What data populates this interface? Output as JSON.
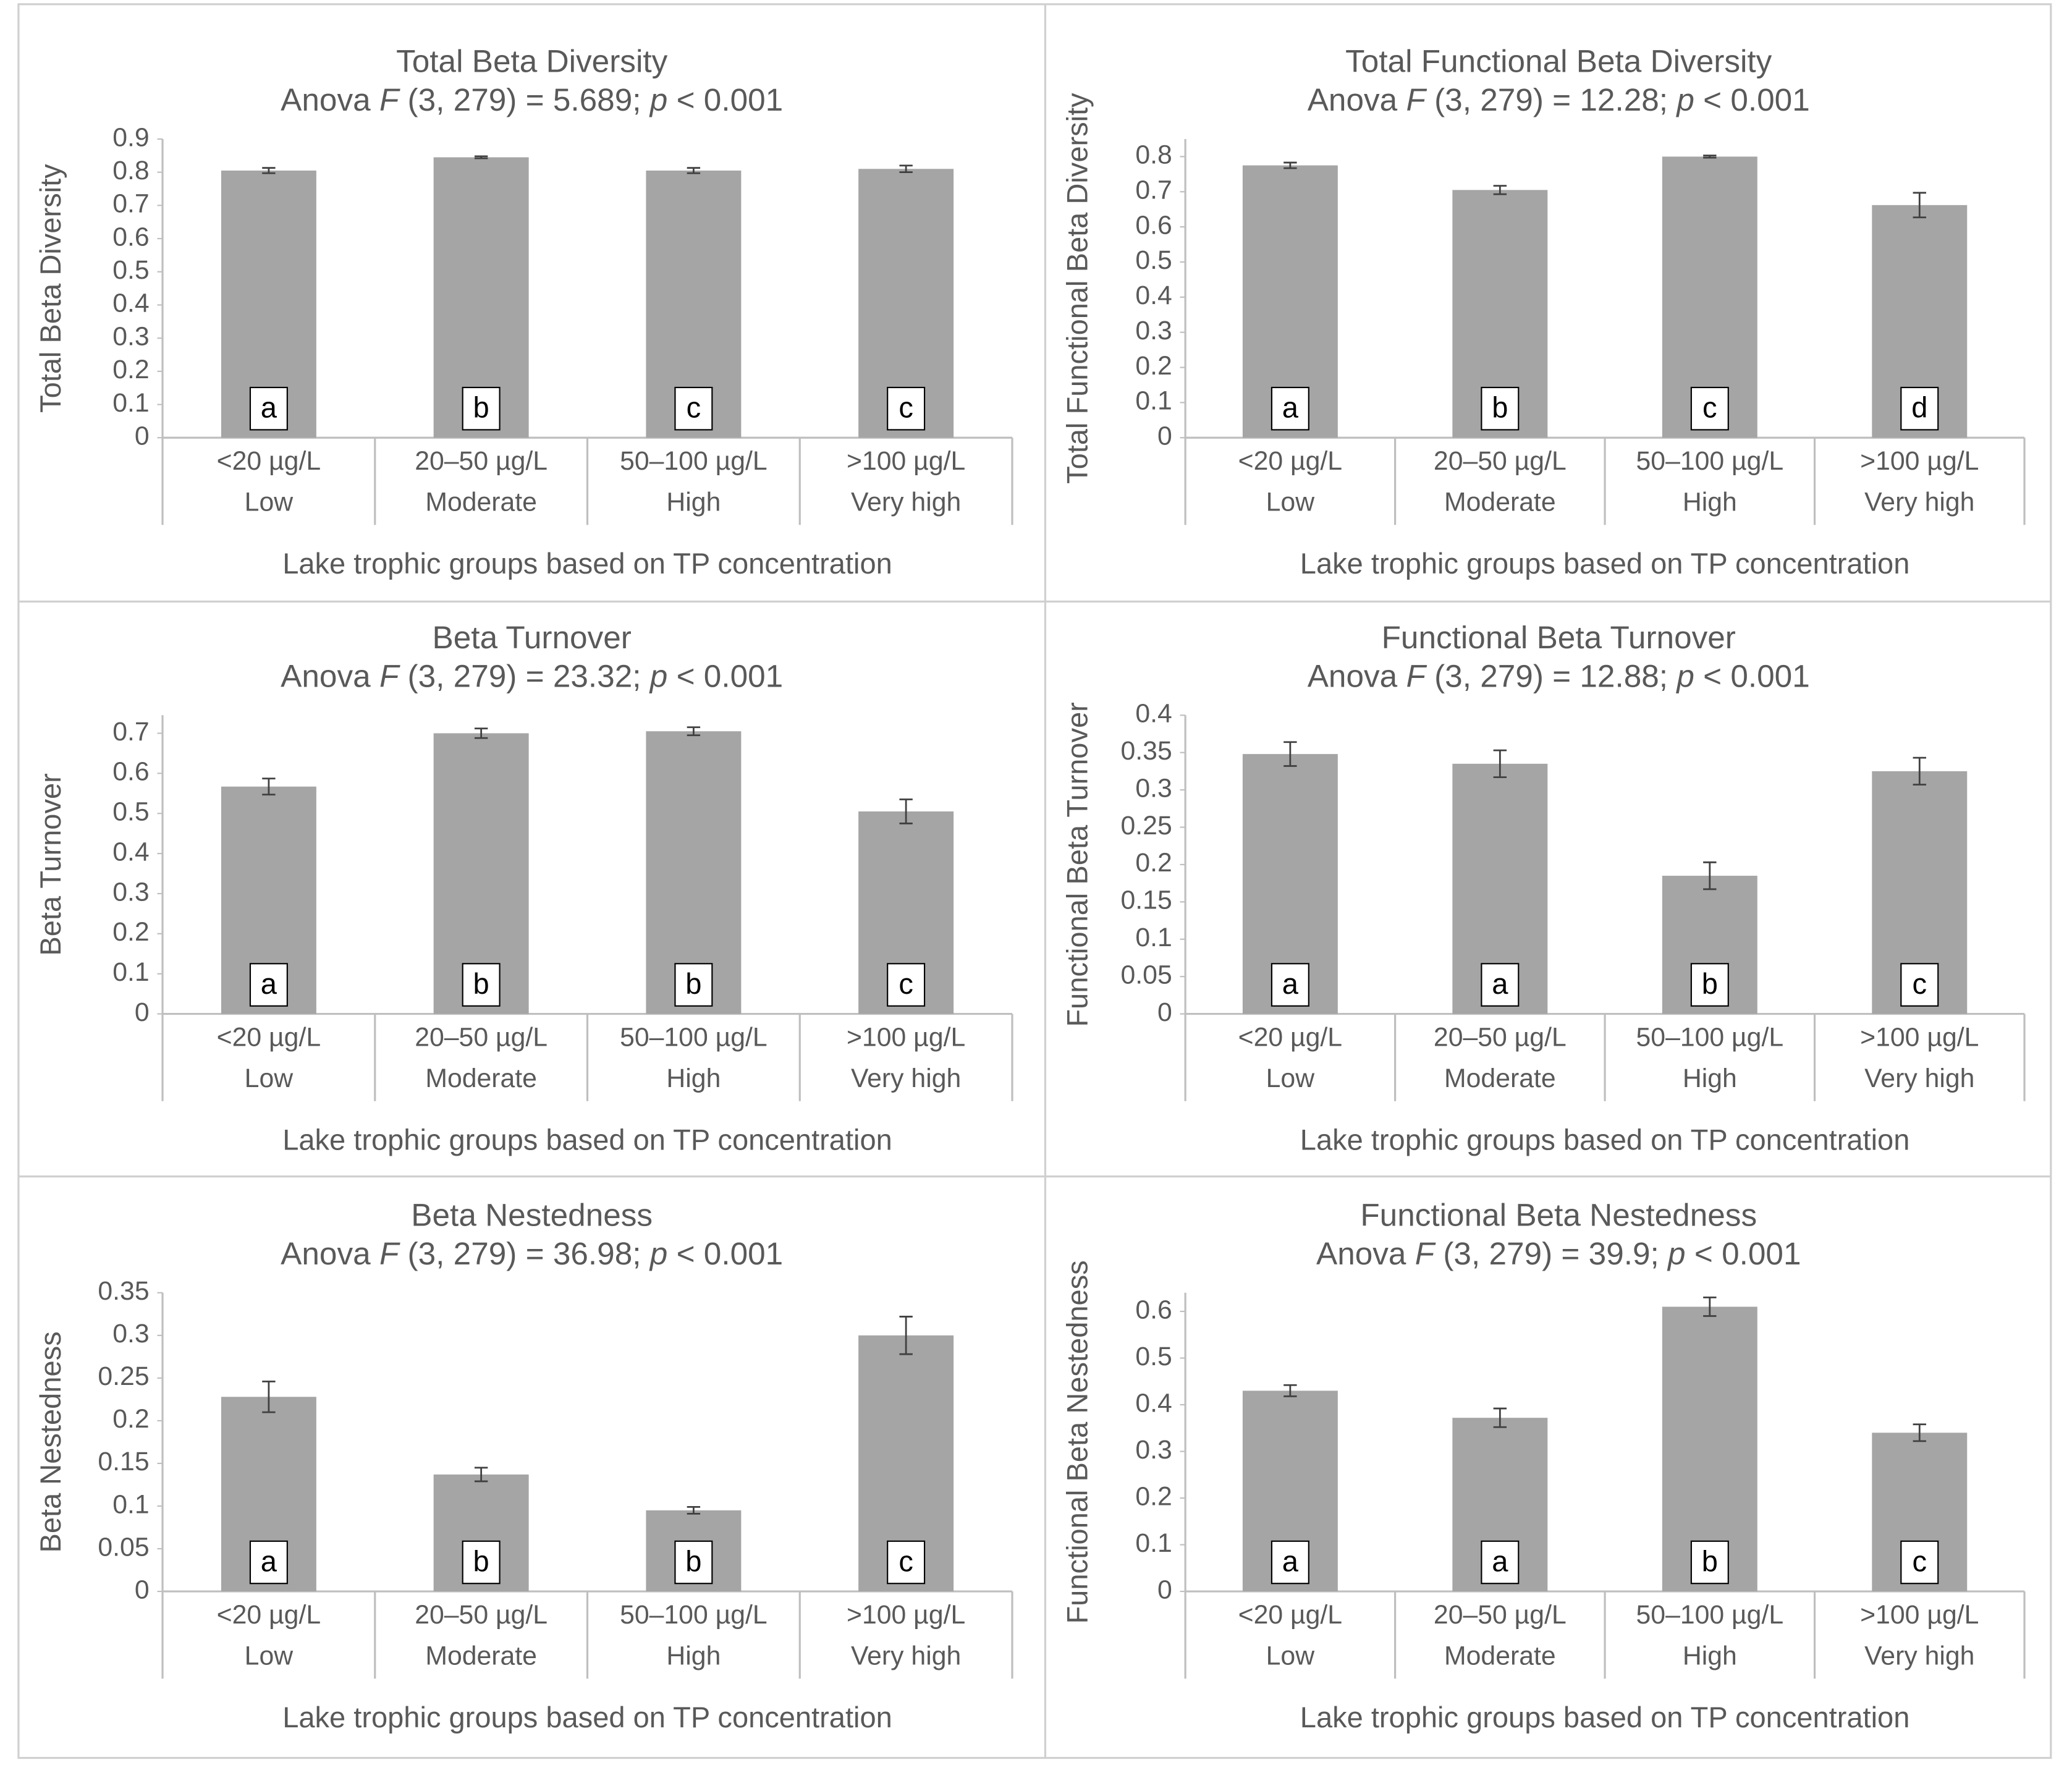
{
  "chart_data": [
    {
      "type": "bar",
      "title": "Total Beta Diversity",
      "subtitle": "Anova F (3, 279)  = 5.689; p < 0.001",
      "ylabel": "Total Beta Diversity",
      "xlabel": "Lake trophic groups based on TP concentration",
      "categories": [
        [
          "<20 µg/L",
          "Low"
        ],
        [
          "20–50  µg/L",
          "Moderate"
        ],
        [
          "50–100  µg/L",
          "High"
        ],
        [
          ">100  µg/L",
          "Very high"
        ]
      ],
      "values": [
        0.805,
        0.845,
        0.805,
        0.81
      ],
      "errors": [
        0.008,
        0.003,
        0.008,
        0.01
      ],
      "group_labels": [
        "a",
        "b",
        "c",
        "c"
      ],
      "color": "#a5a5a5",
      "ylim": [
        0,
        0.9
      ],
      "yticks": [
        0,
        0.1,
        0.2,
        0.3,
        0.4,
        0.5,
        0.6,
        0.7,
        0.8,
        0.9
      ]
    },
    {
      "type": "bar",
      "title": "Total Functional  Beta Diversity",
      "subtitle": "Anova F (3, 279)  = 12.28; p < 0.001",
      "ylabel": "Total Functional Beta Diversity",
      "xlabel": "Lake trophic groups based on TP concentration",
      "categories": [
        [
          "<20 µg/L",
          "Low"
        ],
        [
          "20–50  µg/L",
          "Moderate"
        ],
        [
          "50–100  µg/L",
          "High"
        ],
        [
          ">100  µg/L",
          "Very high"
        ]
      ],
      "values": [
        0.775,
        0.705,
        0.8,
        0.662
      ],
      "errors": [
        0.008,
        0.012,
        0.003,
        0.035
      ],
      "group_labels": [
        "a",
        "b",
        "c",
        "d"
      ],
      "color": "#a5a5a5",
      "ylim": [
        0,
        0.85
      ],
      "yticks": [
        0,
        0.1,
        0.2,
        0.3,
        0.4,
        0.5,
        0.6,
        0.7,
        0.8
      ]
    },
    {
      "type": "bar",
      "title": "Beta Turnover",
      "subtitle": "Anova F (3, 279)  = 23.32; p < 0.001",
      "ylabel": "Beta Turnover",
      "xlabel": "Lake trophic groups based on TP concentration",
      "categories": [
        [
          "<20 µg/L",
          "Low"
        ],
        [
          "20–50  µg/L",
          "Moderate"
        ],
        [
          "50–100  µg/L",
          "High"
        ],
        [
          ">100  µg/L",
          "Very high"
        ]
      ],
      "values": [
        0.567,
        0.7,
        0.705,
        0.505
      ],
      "errors": [
        0.02,
        0.012,
        0.01,
        0.03
      ],
      "group_labels": [
        "a",
        "b",
        "b",
        "c"
      ],
      "color": "#a5a5a5",
      "ylim": [
        0,
        0.745
      ],
      "yticks": [
        0,
        0.1,
        0.2,
        0.3,
        0.4,
        0.5,
        0.6,
        0.7
      ]
    },
    {
      "type": "bar",
      "title": "Functional  Beta Turnover",
      "subtitle": "Anova F (3, 279)  = 12.88; p < 0.001",
      "ylabel": "Functional Beta Turnover",
      "xlabel": "Lake trophic groups based on TP concentration",
      "categories": [
        [
          "<20 µg/L",
          "Low"
        ],
        [
          "20–50  µg/L",
          "Moderate"
        ],
        [
          "50–100  µg/L",
          "High"
        ],
        [
          ">100  µg/L",
          "Very high"
        ]
      ],
      "values": [
        0.348,
        0.335,
        0.185,
        0.325
      ],
      "errors": [
        0.016,
        0.018,
        0.018,
        0.018
      ],
      "group_labels": [
        "a",
        "a",
        "b",
        "c"
      ],
      "color": "#a5a5a5",
      "ylim": [
        0,
        0.4
      ],
      "yticks": [
        0,
        0.05,
        0.1,
        0.15,
        0.2,
        0.25,
        0.3,
        0.35,
        0.4
      ]
    },
    {
      "type": "bar",
      "title": "Beta Nestedness",
      "subtitle": "Anova F (3, 279)  = 36.98; p < 0.001",
      "ylabel": "Beta Nestedness",
      "xlabel": "Lake trophic groups based on TP concentration",
      "categories": [
        [
          "<20 µg/L",
          "Low"
        ],
        [
          "20–50  µg/L",
          "Moderate"
        ],
        [
          "50–100  µg/L",
          "High"
        ],
        [
          ">100  µg/L",
          "Very high"
        ]
      ],
      "values": [
        0.228,
        0.137,
        0.095,
        0.3
      ],
      "errors": [
        0.018,
        0.008,
        0.004,
        0.022
      ],
      "group_labels": [
        "a",
        "b",
        "b",
        "c"
      ],
      "color": "#a5a5a5",
      "ylim": [
        0,
        0.35
      ],
      "yticks": [
        0,
        0.05,
        0.1,
        0.15,
        0.2,
        0.25,
        0.3,
        0.35
      ]
    },
    {
      "type": "bar",
      "title": "Functional  Beta Nestedness",
      "subtitle": "Anova F (3, 279)  = 39.9; p < 0.001",
      "ylabel": "Functional Beta Nestedness",
      "xlabel": "Lake trophic groups based on TP concentration",
      "categories": [
        [
          "<20 µg/L",
          "Low"
        ],
        [
          "20–50  µg/L",
          "Moderate"
        ],
        [
          "50–100  µg/L",
          "High"
        ],
        [
          ">100  µg/L",
          "Very high"
        ]
      ],
      "values": [
        0.43,
        0.372,
        0.61,
        0.34
      ],
      "errors": [
        0.012,
        0.02,
        0.02,
        0.018
      ],
      "group_labels": [
        "a",
        "a",
        "b",
        "c"
      ],
      "color": "#a5a5a5",
      "ylim": [
        0,
        0.64
      ],
      "yticks": [
        0,
        0.1,
        0.2,
        0.3,
        0.4,
        0.5,
        0.6
      ]
    }
  ]
}
